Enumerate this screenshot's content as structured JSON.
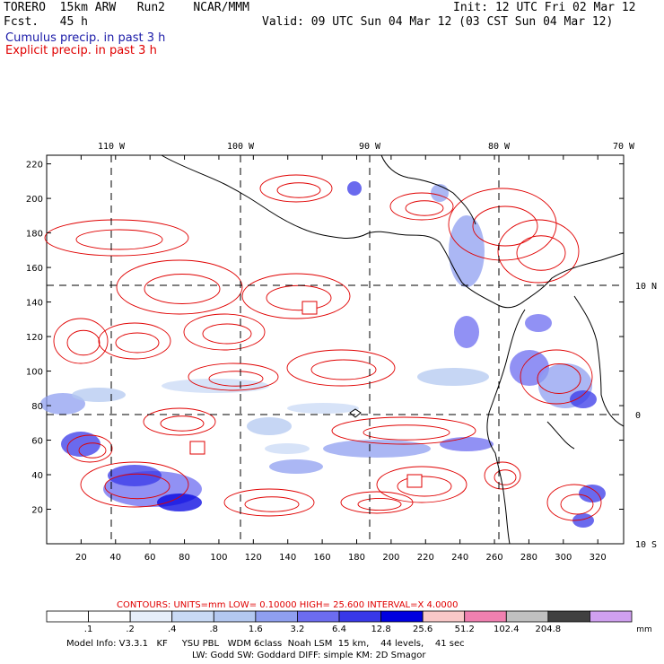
{
  "header": {
    "model": "TORERO  15km ARW   Run2    NCAR/MMM",
    "init": "Init: 12 UTC Fri 02 Mar 12",
    "fcst": "Fcst.   45 h",
    "valid": "Valid: 09 UTC Sun 04 Mar 12 (03 CST Sun 04 Mar 12)",
    "legend_cumulus": "Cumulus precip. in past 3 h",
    "legend_explicit": "Explicit precip. in past 3 h"
  },
  "chart_data": {
    "type": "map",
    "x_axis": {
      "ticks": [
        "20",
        "40",
        "60",
        "80",
        "100",
        "120",
        "140",
        "160",
        "180",
        "200",
        "220",
        "240",
        "260",
        "280",
        "300",
        "320"
      ],
      "range": [
        0,
        335
      ]
    },
    "y_axis": {
      "ticks": [
        "20",
        "40",
        "60",
        "80",
        "100",
        "120",
        "140",
        "160",
        "180",
        "200",
        "220"
      ],
      "range": [
        0,
        225
      ]
    },
    "top_lon_labels": [
      "110 W",
      "100 W",
      "90 W",
      "80 W",
      "70 W"
    ],
    "right_lat_labels": [
      "10 N",
      "0",
      "10 S"
    ],
    "contours_label": "CONTOURS:  UNITS=mm  LOW= 0.10000      HIGH=  25.600      INTERVAL=X  4.0000",
    "colorbar": {
      "labels": [
        ".1",
        ".2",
        ".4",
        ".8",
        "1.6",
        "3.2",
        "6.4",
        "12.8",
        "25.6",
        "51.2",
        "102.4",
        "204.8"
      ],
      "unit": "mm",
      "colors": [
        "#ffffff",
        "#ffffff",
        "#e6eefa",
        "#c9daf5",
        "#b3c8f0",
        "#8f9ff0",
        "#6c6cf0",
        "#3838e8",
        "#0000e0",
        "#f9c8c8",
        "#f080b0",
        "#c0c0c0",
        "#404040",
        "#d0a0f0"
      ]
    }
  },
  "footer": {
    "line1": "Model Info: V3.3.1   KF     YSU PBL   WDM 6class  Noah LSM  15 km,    44 levels,    41 sec",
    "line2": "LW: Godd SW: Goddard DIFF: simple KM: 2D Smagor"
  }
}
